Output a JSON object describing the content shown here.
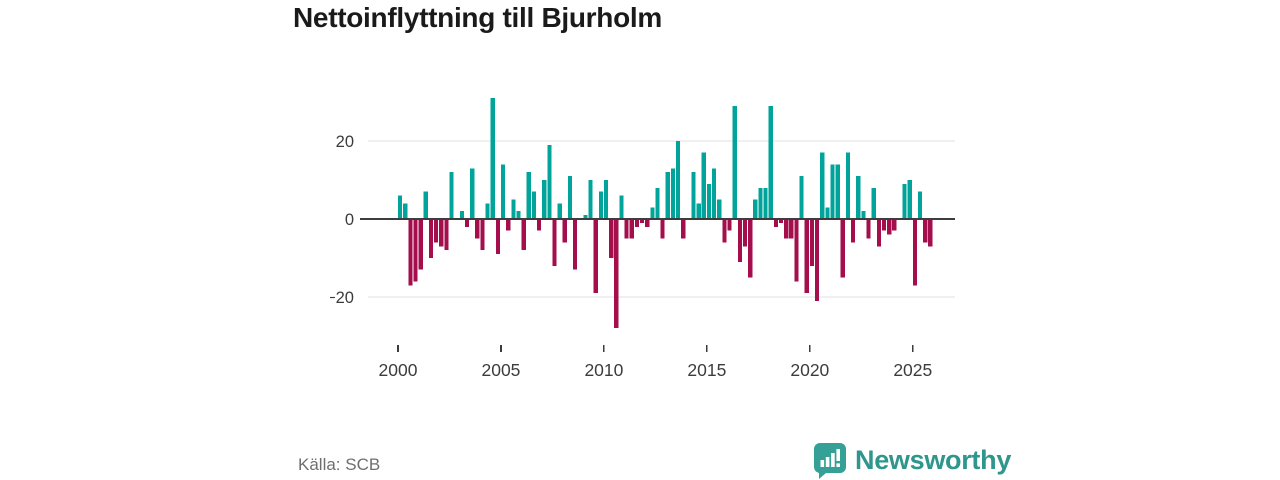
{
  "title": "Nettoinflyttning till Bjurholm",
  "source": "Källa: SCB",
  "brand": {
    "name": "Newsworthy",
    "logo_icon": "bar-chart-speech-bubble-icon"
  },
  "colors": {
    "positive_bar": "#00a49a",
    "negative_bar": "#a40e4c",
    "axis_line": "#3d3d3d",
    "gridline": "#e1e1e1",
    "tick_label": "#3c3c3c",
    "title_text": "#1a1a1a",
    "source_text": "#6f6f6f",
    "brand_teal": "#2e968c"
  },
  "chart_data": {
    "type": "bar",
    "title": "Nettoinflyttning till Bjurholm",
    "xlabel": "",
    "ylabel": "",
    "frequency": "quarterly",
    "start": "2000-Q1",
    "end": "2025-Q4",
    "values": [
      6,
      4,
      -17,
      -16,
      -13,
      7,
      -10,
      -6,
      -7,
      -8,
      12,
      0,
      2,
      -2,
      13,
      -5,
      -8,
      4,
      31,
      -9,
      14,
      -3,
      5,
      2,
      -8,
      12,
      7,
      -3,
      10,
      19,
      -12,
      4,
      -6,
      11,
      -13,
      0,
      1,
      10,
      -19,
      7,
      10,
      -10,
      -28,
      6,
      -5,
      -5,
      -2,
      -1,
      -2,
      3,
      8,
      -5,
      12,
      13,
      20,
      -5,
      0,
      12,
      4,
      17,
      9,
      13,
      5,
      -6,
      -3,
      29,
      -11,
      -7,
      -15,
      5,
      8,
      8,
      29,
      -2,
      -1,
      -5,
      -5,
      -16,
      11,
      -19,
      -12,
      -21,
      17,
      3,
      14,
      14,
      -15,
      17,
      -6,
      11,
      2,
      -5,
      8,
      -7,
      -3,
      -4,
      -3,
      0,
      9,
      10,
      -17,
      7,
      -6,
      -7
    ],
    "x_ticks": [
      2000,
      2005,
      2010,
      2015,
      2020,
      2025
    ],
    "y_ticks": [
      {
        "value": 20,
        "label": "20"
      },
      {
        "value": 0,
        "label": "0"
      },
      {
        "value": -20,
        "label": "−20"
      }
    ],
    "ylim": [
      -30,
      33
    ],
    "grid": "horizontal",
    "legend": "none",
    "positive_color": "#00a49a",
    "negative_color": "#a40e4c"
  }
}
